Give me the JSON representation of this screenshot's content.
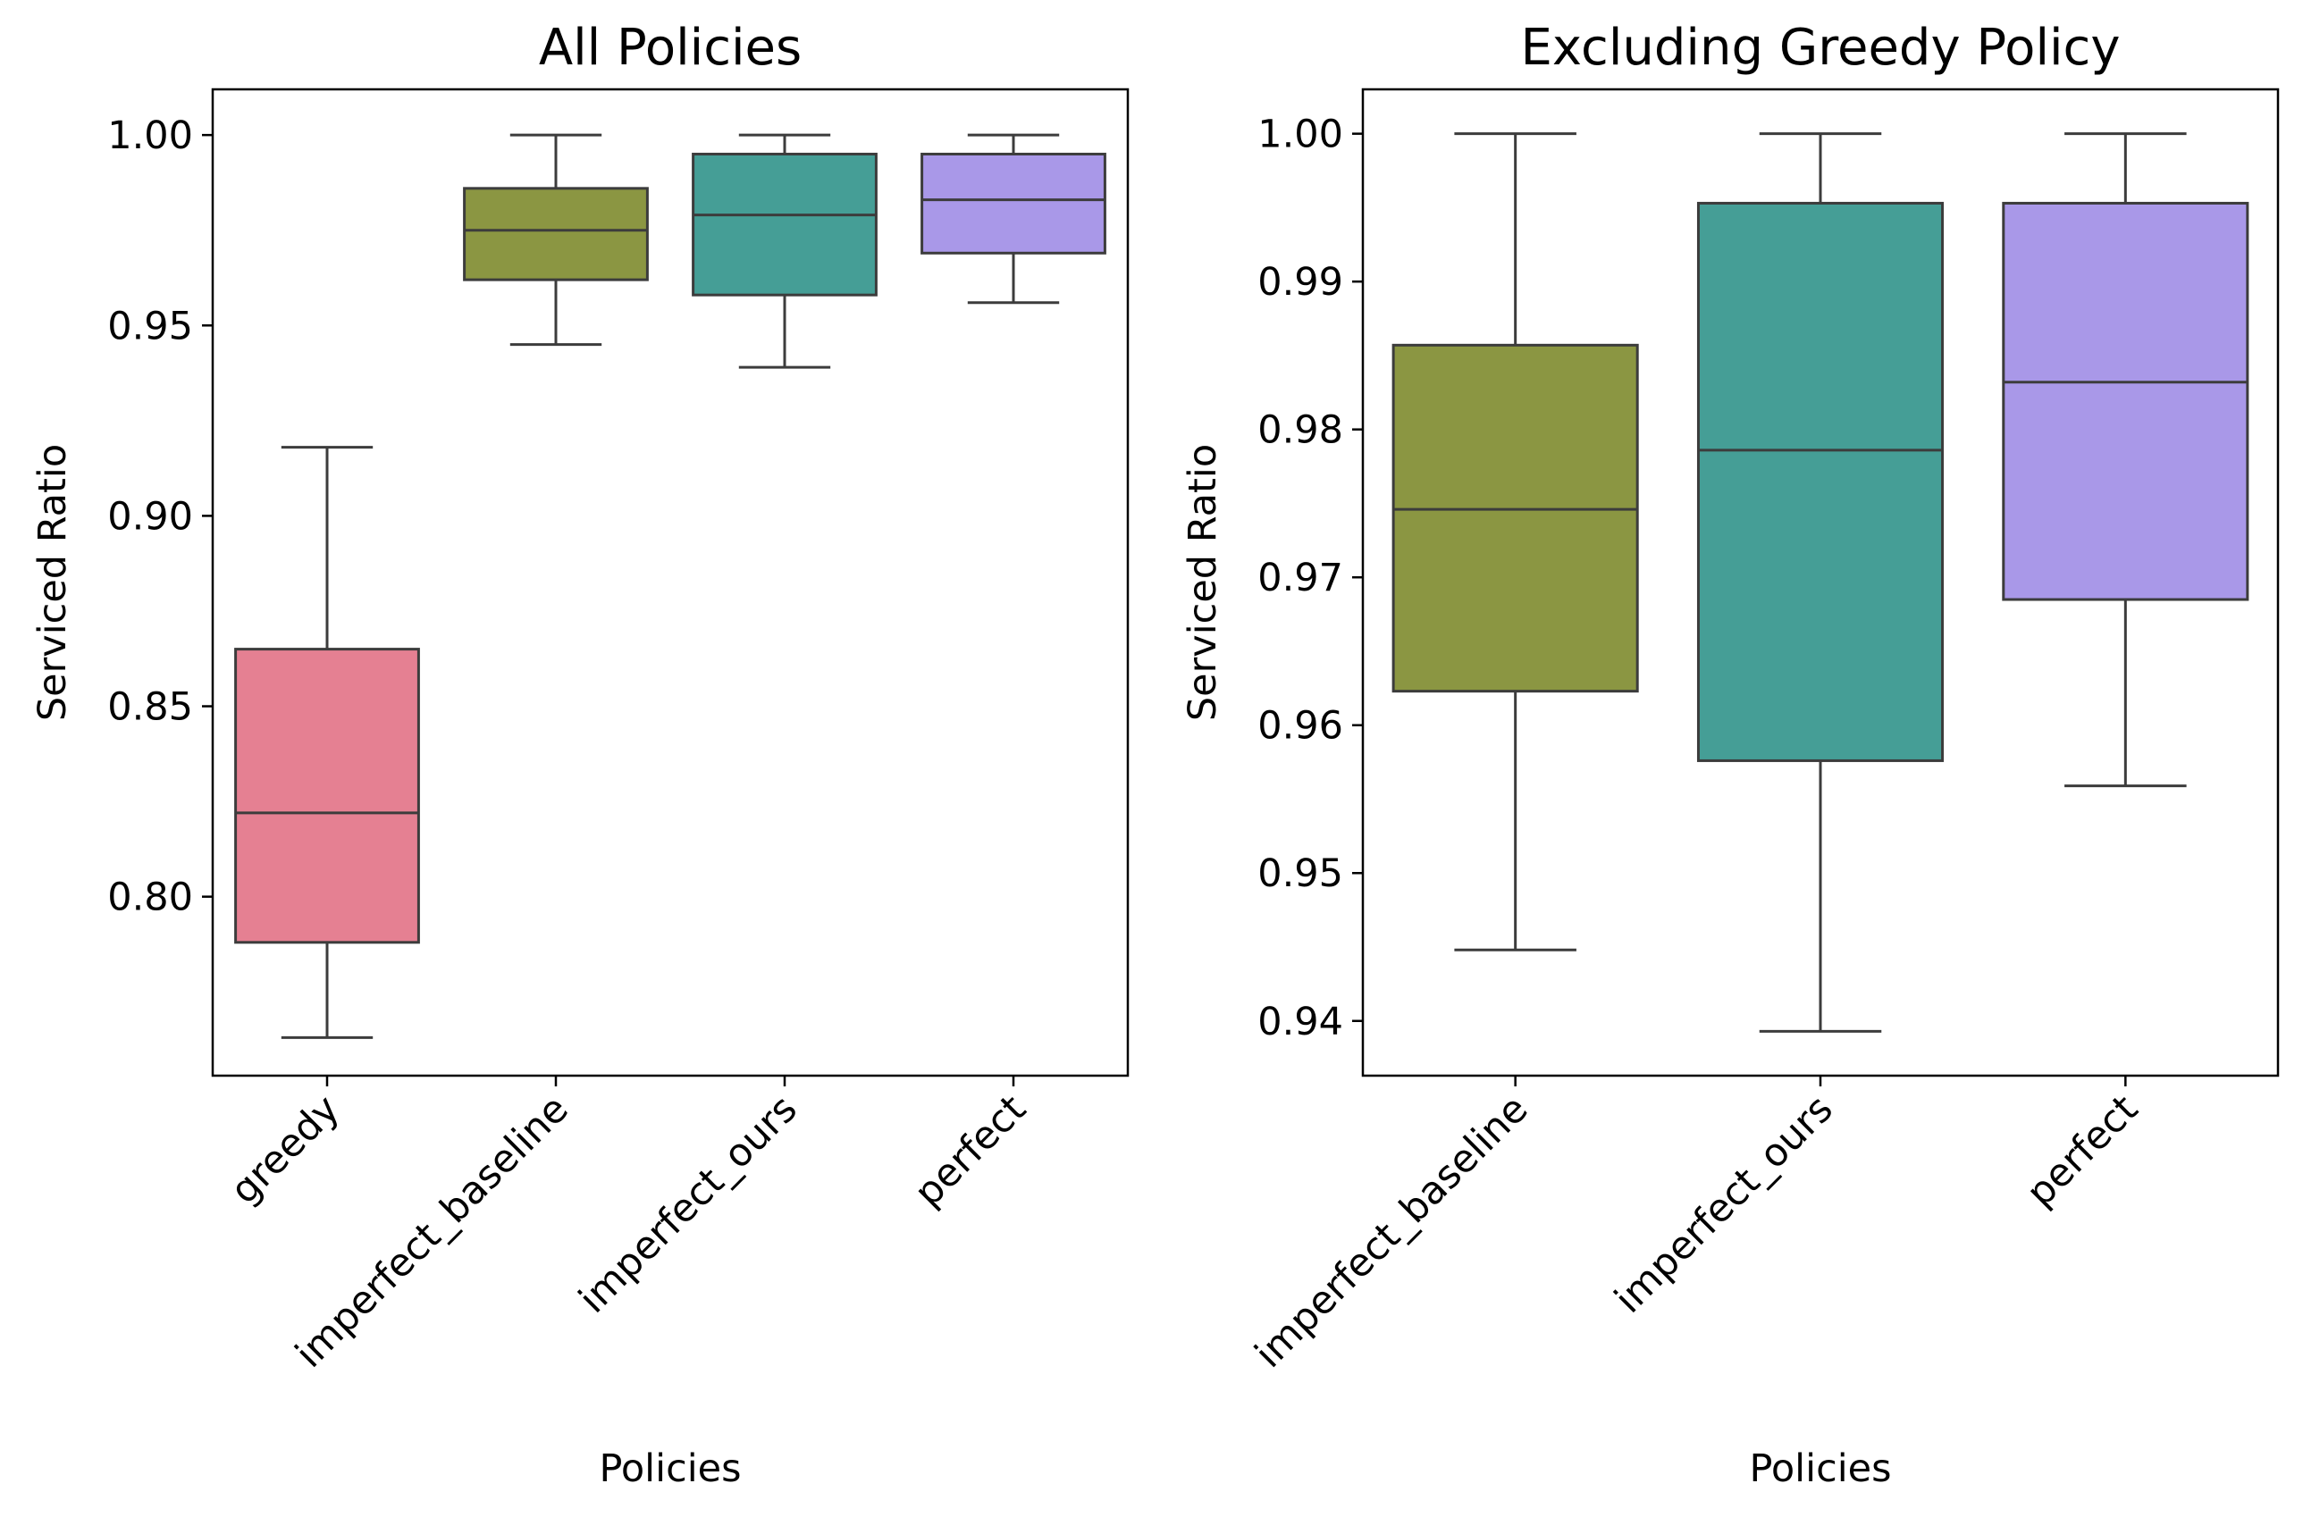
{
  "chart_data": [
    {
      "type": "box",
      "title": "All Policies",
      "xlabel": "Policies",
      "ylabel": "Serviced Ratio",
      "ylim": [
        0.753,
        1.012
      ],
      "yticks": [
        "0.80",
        "0.85",
        "0.90",
        "0.95",
        "1.00"
      ],
      "grid": false,
      "categories": [
        "greedy",
        "imperfect_baseline",
        "imperfect_ours",
        "perfect"
      ],
      "colors": [
        "#e58092",
        "#8b9642",
        "#459e96",
        "#a998e8"
      ],
      "boxes": [
        {
          "whisker_low": 0.763,
          "q1": 0.788,
          "median": 0.822,
          "q3": 0.865,
          "whisker_high": 0.918
        },
        {
          "whisker_low": 0.945,
          "q1": 0.962,
          "median": 0.975,
          "q3": 0.986,
          "whisker_high": 1.0
        },
        {
          "whisker_low": 0.939,
          "q1": 0.958,
          "median": 0.979,
          "q3": 0.995,
          "whisker_high": 1.0
        },
        {
          "whisker_low": 0.956,
          "q1": 0.969,
          "median": 0.983,
          "q3": 0.995,
          "whisker_high": 1.0
        }
      ]
    },
    {
      "type": "box",
      "title": "Excluding Greedy Policy",
      "xlabel": "Policies",
      "ylabel": "Serviced Ratio",
      "ylim": [
        0.9363,
        1.003
      ],
      "yticks": [
        "0.94",
        "0.95",
        "0.96",
        "0.97",
        "0.98",
        "0.99",
        "1.00"
      ],
      "grid": false,
      "categories": [
        "imperfect_baseline",
        "imperfect_ours",
        "perfect"
      ],
      "colors": [
        "#8b9642",
        "#459e96",
        "#a998e8"
      ],
      "boxes": [
        {
          "whisker_low": 0.9448,
          "q1": 0.9623,
          "median": 0.9746,
          "q3": 0.9857,
          "whisker_high": 1.0
        },
        {
          "whisker_low": 0.9393,
          "q1": 0.9576,
          "median": 0.9786,
          "q3": 0.9953,
          "whisker_high": 1.0
        },
        {
          "whisker_low": 0.9559,
          "q1": 0.9685,
          "median": 0.9832,
          "q3": 0.9953,
          "whisker_high": 1.0
        }
      ]
    }
  ]
}
